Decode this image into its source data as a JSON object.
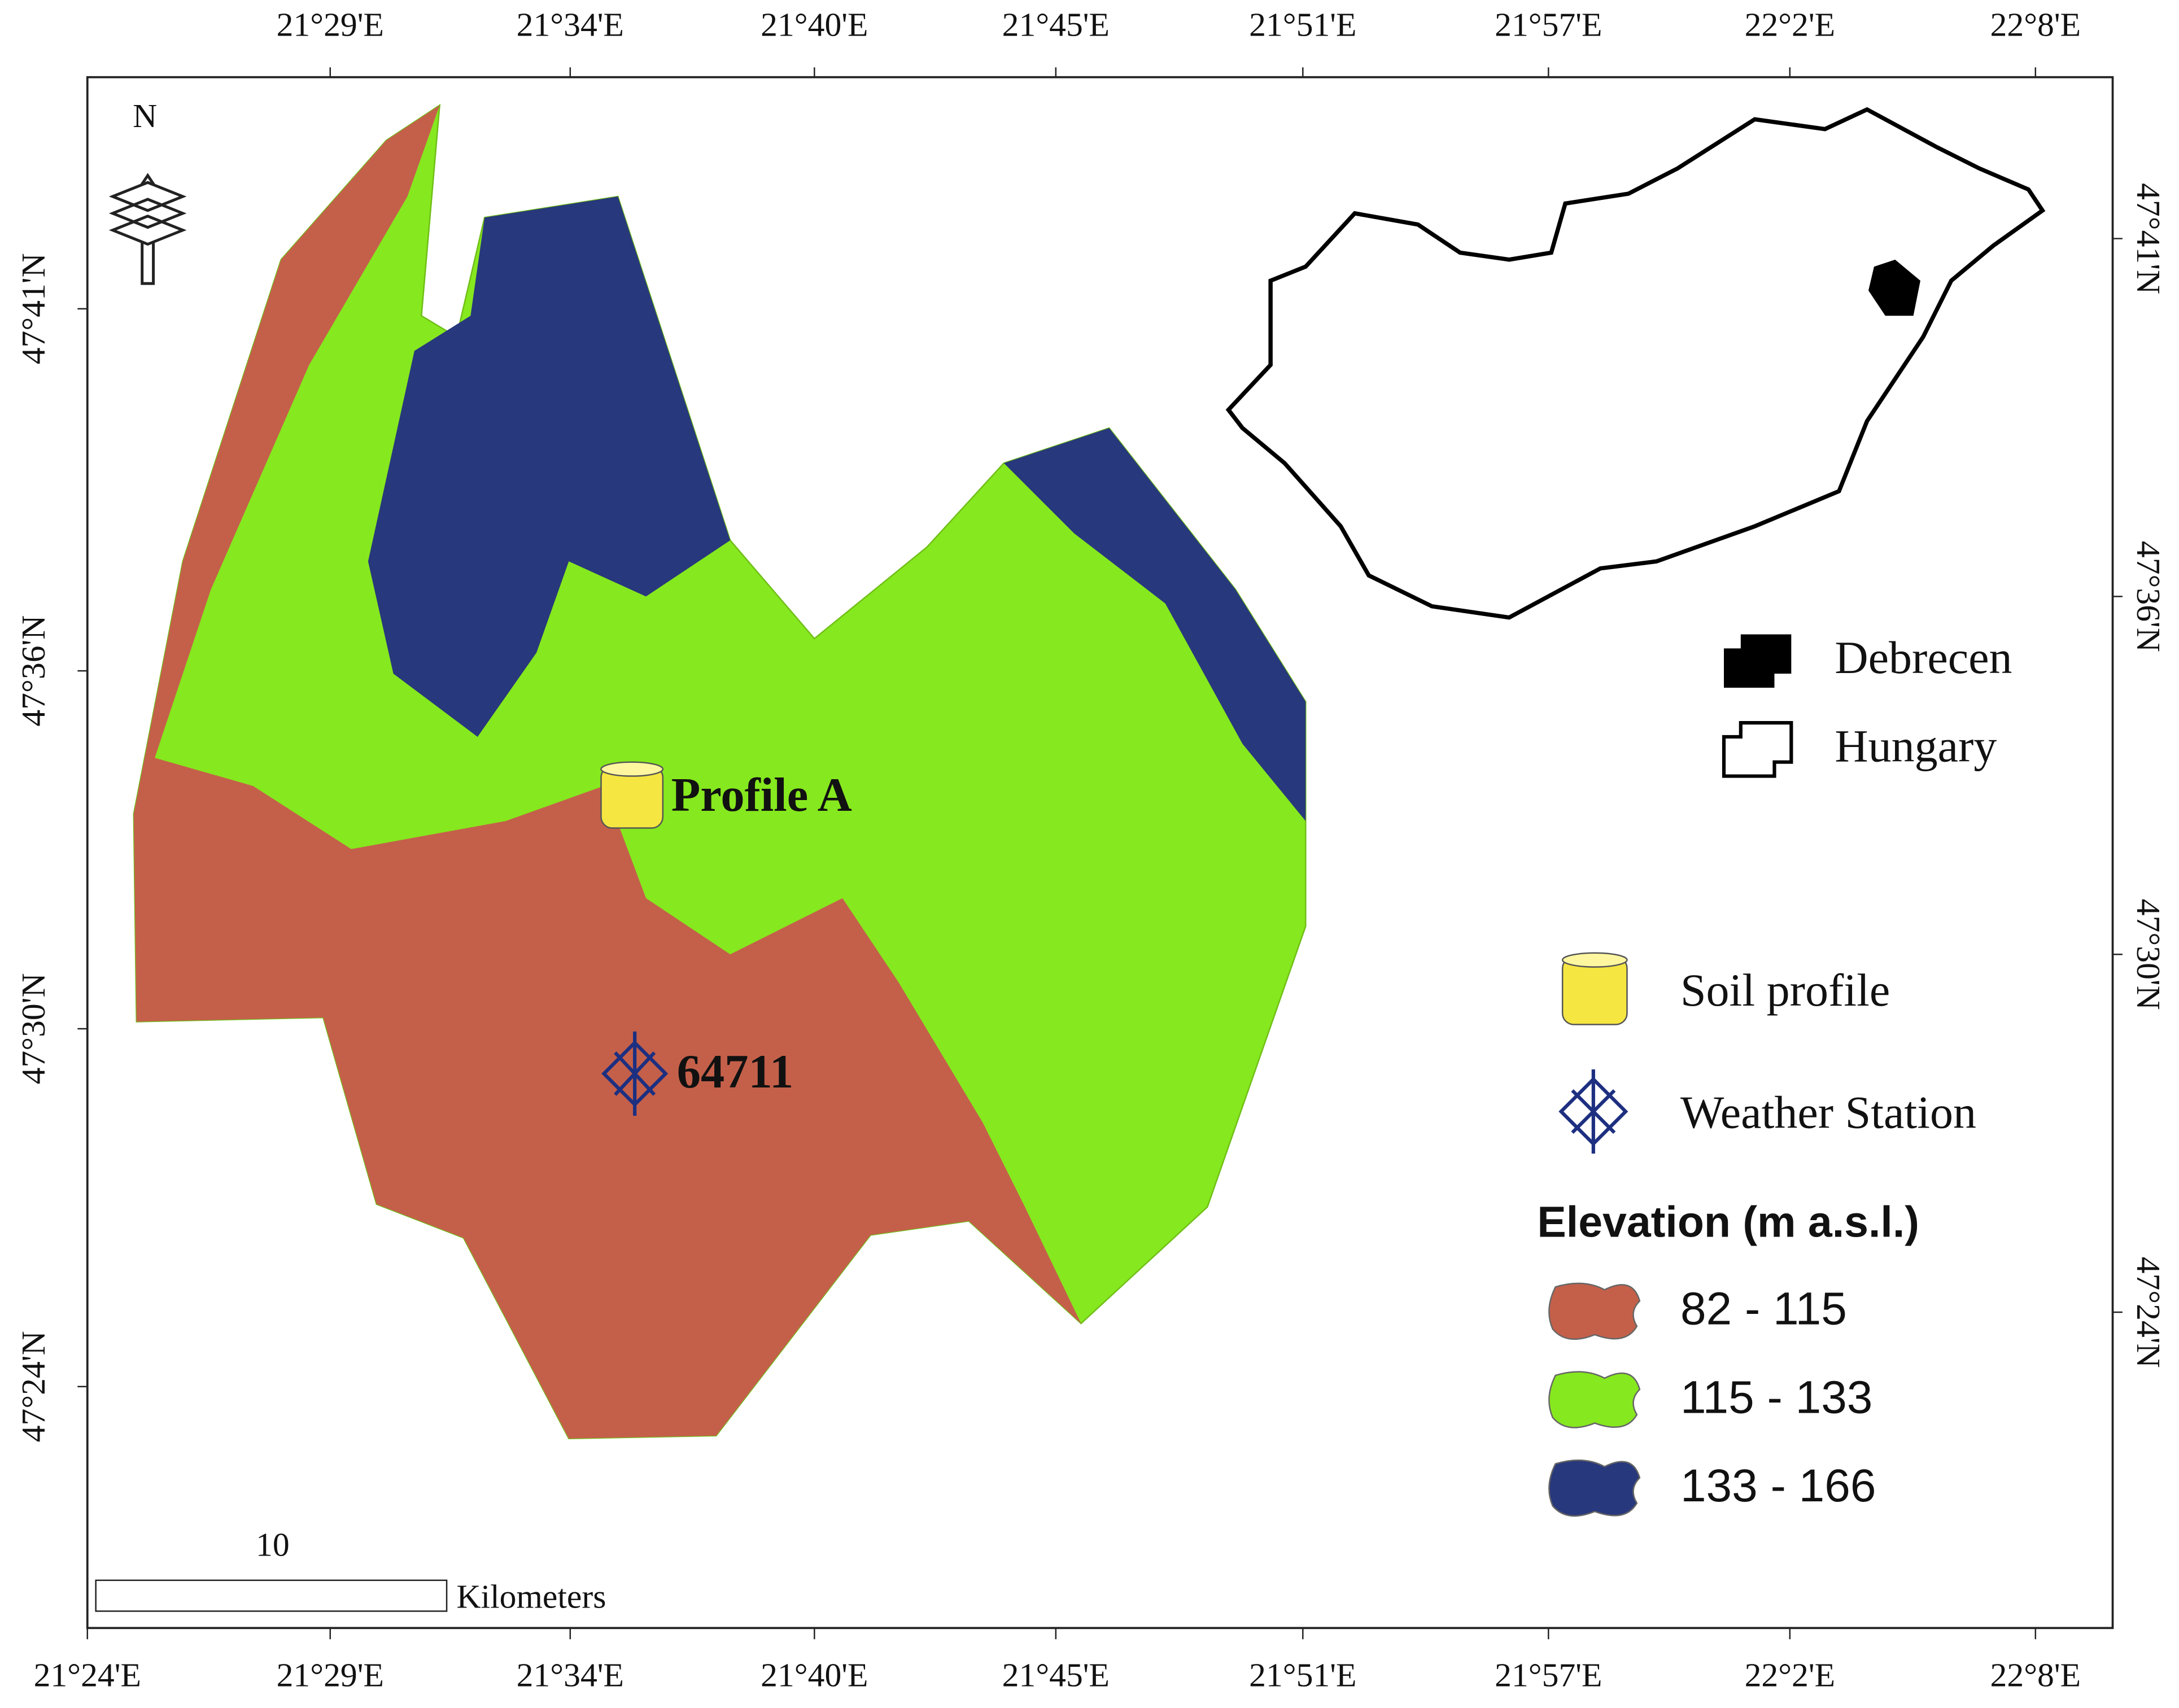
{
  "map": {
    "top_labels": [
      "21°29'E",
      "21°34'E",
      "21°40'E",
      "21°45'E",
      "21°51'E",
      "21°57'E",
      "22°2'E",
      "22°8'E"
    ],
    "bottom_labels": [
      "21°24'E",
      "21°29'E",
      "21°34'E",
      "21°40'E",
      "21°45'E",
      "21°51'E",
      "21°57'E",
      "22°2'E",
      "22°8'E"
    ],
    "left_labels": [
      "47°41'N",
      "47°36'N",
      "47°30'N",
      "47°24'N"
    ],
    "right_labels": [
      "47°41'N",
      "47°36'N",
      "47°30'N",
      "47°24'N"
    ],
    "north": "N",
    "profile_label": "Profile  A",
    "station_label": "64711",
    "scale_value": "10",
    "scale_unit": "Kilometers",
    "legend": {
      "debrecen": "Debrecen",
      "hungary": "Hungary",
      "soil_profile": "Soil profile",
      "weather_station": "Weather Station",
      "elevation_title": "Elevation (m a.s.l.)",
      "classes": [
        {
          "label": "82 - 115",
          "color": "#c4604a"
        },
        {
          "label": "115 - 133",
          "color": "#86e81e"
        },
        {
          "label": "133 - 166",
          "color": "#28387c"
        }
      ]
    }
  }
}
